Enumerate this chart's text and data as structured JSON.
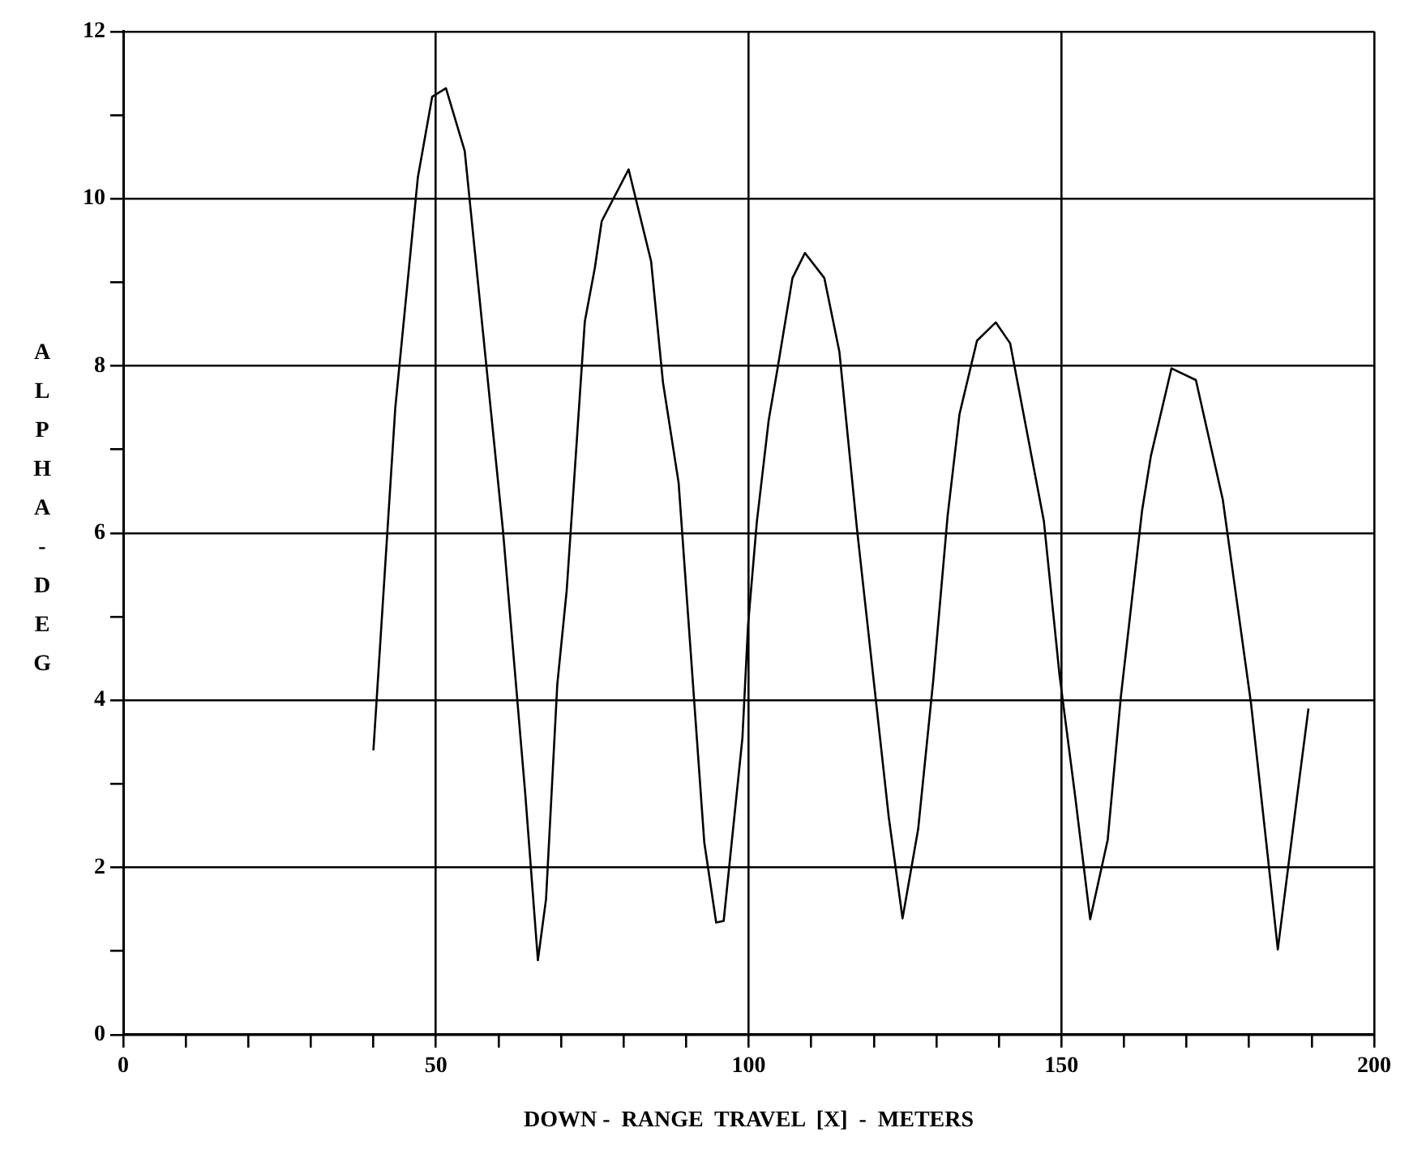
{
  "chart_data": {
    "type": "line",
    "xlabel": "DOWN -  RANGE  TRAVEL  [X]  -  METERS",
    "ylabel": "ALPHA - DEG",
    "xlim": [
      0,
      200
    ],
    "ylim": [
      0,
      12
    ],
    "xticks": [
      0,
      {
        "value": 10,
        "label": null
      },
      {
        "value": 20,
        "label": null
      },
      {
        "value": 30,
        "label": null
      },
      {
        "value": 40,
        "label": null
      },
      50,
      {
        "value": 60,
        "label": null
      },
      {
        "value": 70,
        "label": null
      },
      {
        "value": 80,
        "label": null
      },
      {
        "value": 90,
        "label": null
      },
      100,
      {
        "value": 110,
        "label": null
      },
      {
        "value": 120,
        "label": null
      },
      {
        "value": 130,
        "label": null
      },
      {
        "value": 140,
        "label": null
      },
      150,
      {
        "value": 160,
        "label": null
      },
      {
        "value": 170,
        "label": null
      },
      {
        "value": 180,
        "label": null
      },
      {
        "value": 190,
        "label": null
      },
      200
    ],
    "yticks": [
      0,
      {
        "value": 1,
        "label": null
      },
      2,
      {
        "value": 3,
        "label": null
      },
      4,
      {
        "value": 5,
        "label": null
      },
      6,
      {
        "value": 7,
        "label": null
      },
      8,
      {
        "value": 9,
        "label": null
      },
      10,
      {
        "value": 11,
        "label": null
      },
      12
    ],
    "grid": true,
    "legend": false,
    "marker": "none",
    "line_style": "solid",
    "series": [
      {
        "color": "#000000",
        "x": [
          40,
          43.5,
          47.1,
          49.4,
          51.6,
          54.6,
          60.7,
          64.3,
          66.3,
          67.6,
          69.4,
          70.9,
          73.8,
          75.4,
          76.5,
          80.8,
          84.4,
          86.3,
          88.8,
          92.9,
          94.8,
          96,
          99,
          99.9,
          101.3,
          103.2,
          104.6,
          107,
          109,
          112.1,
          114.5,
          117.3,
          122.4,
          124.6,
          127.1,
          129.5,
          131.8,
          133.7,
          136.5,
          139.5,
          141.8,
          147.2,
          149.7,
          152.2,
          154.6,
          157.4,
          159.5,
          162.9,
          164.3,
          167.6,
          171.5,
          175.8,
          180.3,
          183,
          184.6,
          187.6,
          189.5
        ],
        "values": [
          3.4,
          7.5,
          10.25,
          11.22,
          11.32,
          10.57,
          6.04,
          2.86,
          0.89,
          1.62,
          4.19,
          5.31,
          8.53,
          9.17,
          9.73,
          10.35,
          9.25,
          7.8,
          6.6,
          2.3,
          1.34,
          1.36,
          3.55,
          4.9,
          6.13,
          7.35,
          7.96,
          9.05,
          9.35,
          9.05,
          8.17,
          6.06,
          2.6,
          1.39,
          2.46,
          4.23,
          6.2,
          7.42,
          8.3,
          8.52,
          8.27,
          6.14,
          4.3,
          2.85,
          1.38,
          2.33,
          4.04,
          6.27,
          6.92,
          7.97,
          7.83,
          6.4,
          3.97,
          2.13,
          1.02,
          2.8,
          3.9
        ]
      }
    ]
  }
}
